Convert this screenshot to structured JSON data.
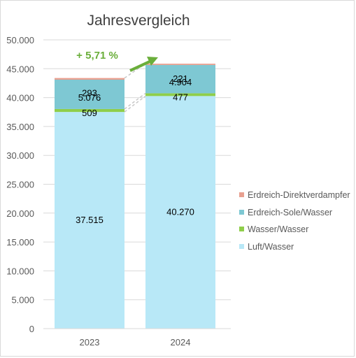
{
  "chart_data": {
    "type": "bar",
    "stacked": true,
    "title": "Jahresvergleich",
    "categories": [
      "2023",
      "2024"
    ],
    "series": [
      {
        "name": "Luft/Wasser",
        "values": [
          37515,
          40270
        ],
        "labels": [
          "37.515",
          "40.270"
        ],
        "color": "#B8E8F7"
      },
      {
        "name": "Wasser/Wasser",
        "values": [
          509,
          477
        ],
        "labels": [
          "509",
          "477"
        ],
        "color": "#8FCE4A"
      },
      {
        "name": "Erdreich-Sole/Wasser",
        "values": [
          5076,
          4904
        ],
        "labels": [
          "5.076",
          "4.904"
        ],
        "color": "#7EC8D3"
      },
      {
        "name": "Erdreich-Direktverdampfer",
        "values": [
          293,
          221
        ],
        "labels": [
          "293",
          "221"
        ],
        "color": "#E8A090"
      }
    ],
    "ylim": [
      0,
      50000
    ],
    "yticks": [
      0,
      5000,
      10000,
      15000,
      20000,
      25000,
      30000,
      35000,
      40000,
      45000,
      50000
    ],
    "ytick_labels": [
      "0",
      "5.000",
      "10.000",
      "15.000",
      "20.000",
      "25.000",
      "30.000",
      "35.000",
      "40.000",
      "45.000",
      "50.000"
    ],
    "gridlines": true,
    "legend_position": "right",
    "annotation": {
      "text": "+ 5,71 %",
      "color": "#6AAE3A"
    }
  }
}
